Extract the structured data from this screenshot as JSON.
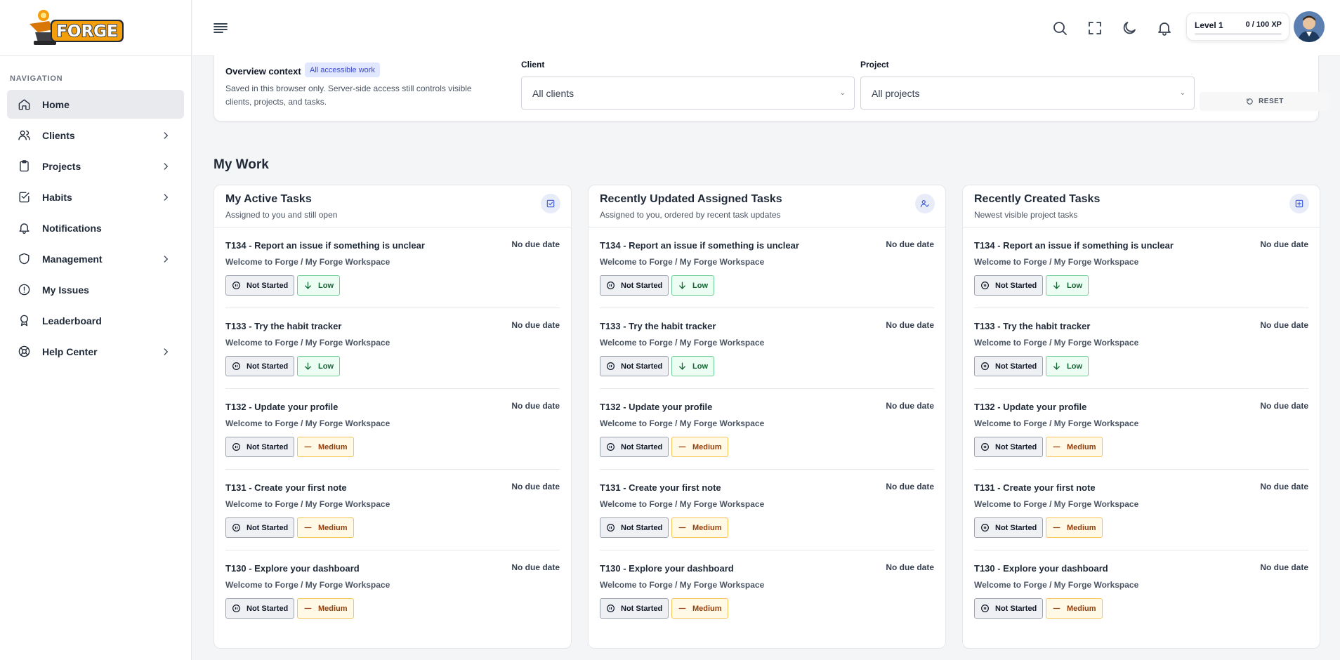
{
  "brand": {
    "logo_text": "FORGE"
  },
  "nav": {
    "heading": "NAVIGATION",
    "items": [
      {
        "label": "Home",
        "icon": "home-icon",
        "active": true,
        "has_children": false
      },
      {
        "label": "Clients",
        "icon": "users-icon",
        "has_children": true
      },
      {
        "label": "Projects",
        "icon": "clipboard-icon",
        "has_children": true
      },
      {
        "label": "Habits",
        "icon": "check-square-icon",
        "has_children": true
      },
      {
        "label": "Notifications",
        "icon": "bell-icon",
        "has_children": false
      },
      {
        "label": "Management",
        "icon": "shield-icon",
        "has_children": true
      },
      {
        "label": "My Issues",
        "icon": "alert-circle-icon",
        "has_children": false
      },
      {
        "label": "Leaderboard",
        "icon": "award-icon",
        "has_children": false
      },
      {
        "label": "Help Center",
        "icon": "lifebuoy-icon",
        "has_children": true
      }
    ]
  },
  "topbar": {
    "level_label": "Level 1",
    "xp_label": "0 / 100 XP",
    "xp_progress": 0,
    "icons": [
      "search-icon",
      "fullscreen-icon",
      "moon-icon",
      "bell-icon"
    ]
  },
  "overview": {
    "title": "Overview context",
    "badge": "All accessible work",
    "description": "Saved in this browser only. Server-side access still controls visible clients, projects, and tasks.",
    "client_label": "Client",
    "client_value": "All clients",
    "project_label": "Project",
    "project_value": "All projects",
    "reset_label": "RESET"
  },
  "section_title": "My Work",
  "cards": [
    {
      "title": "My Active Tasks",
      "subtitle": "Assigned to you and still open",
      "icon": "checkbox-icon",
      "tasks": [
        {
          "title": "T134 - Report an issue if something is unclear",
          "due": "No due date",
          "project": "Welcome to Forge / My Forge Workspace",
          "status": "Not Started",
          "priority": "Low"
        },
        {
          "title": "T133 - Try the habit tracker",
          "due": "No due date",
          "project": "Welcome to Forge / My Forge Workspace",
          "status": "Not Started",
          "priority": "Low"
        },
        {
          "title": "T132 - Update your profile",
          "due": "No due date",
          "project": "Welcome to Forge / My Forge Workspace",
          "status": "Not Started",
          "priority": "Medium"
        },
        {
          "title": "T131 - Create your first note",
          "due": "No due date",
          "project": "Welcome to Forge / My Forge Workspace",
          "status": "Not Started",
          "priority": "Medium"
        },
        {
          "title": "T130 - Explore your dashboard",
          "due": "No due date",
          "project": "Welcome to Forge / My Forge Workspace",
          "status": "Not Started",
          "priority": "Medium"
        }
      ]
    },
    {
      "title": "Recently Updated Assigned Tasks",
      "subtitle": "Assigned to you, ordered by recent task updates",
      "icon": "user-check-icon",
      "tasks": [
        {
          "title": "T134 - Report an issue if something is unclear",
          "due": "No due date",
          "project": "Welcome to Forge / My Forge Workspace",
          "status": "Not Started",
          "priority": "Low"
        },
        {
          "title": "T133 - Try the habit tracker",
          "due": "No due date",
          "project": "Welcome to Forge / My Forge Workspace",
          "status": "Not Started",
          "priority": "Low"
        },
        {
          "title": "T132 - Update your profile",
          "due": "No due date",
          "project": "Welcome to Forge / My Forge Workspace",
          "status": "Not Started",
          "priority": "Medium"
        },
        {
          "title": "T131 - Create your first note",
          "due": "No due date",
          "project": "Welcome to Forge / My Forge Workspace",
          "status": "Not Started",
          "priority": "Medium"
        },
        {
          "title": "T130 - Explore your dashboard",
          "due": "No due date",
          "project": "Welcome to Forge / My Forge Workspace",
          "status": "Not Started",
          "priority": "Medium"
        }
      ]
    },
    {
      "title": "Recently Created Tasks",
      "subtitle": "Newest visible project tasks",
      "icon": "plus-square-icon",
      "tasks": [
        {
          "title": "T134 - Report an issue if something is unclear",
          "due": "No due date",
          "project": "Welcome to Forge / My Forge Workspace",
          "status": "Not Started",
          "priority": "Low"
        },
        {
          "title": "T133 - Try the habit tracker",
          "due": "No due date",
          "project": "Welcome to Forge / My Forge Workspace",
          "status": "Not Started",
          "priority": "Low"
        },
        {
          "title": "T132 - Update your profile",
          "due": "No due date",
          "project": "Welcome to Forge / My Forge Workspace",
          "status": "Not Started",
          "priority": "Medium"
        },
        {
          "title": "T131 - Create your first note",
          "due": "No due date",
          "project": "Welcome to Forge / My Forge Workspace",
          "status": "Not Started",
          "priority": "Medium"
        },
        {
          "title": "T130 - Explore your dashboard",
          "due": "No due date",
          "project": "Welcome to Forge / My Forge Workspace",
          "status": "Not Started",
          "priority": "Medium"
        }
      ]
    }
  ],
  "colors": {
    "accent": "#3b5bdb",
    "low_bg": "#ecfdf3",
    "low_border": "#6fcf97",
    "medium_bg": "#fff9e6",
    "medium_border": "#f5c45a"
  }
}
